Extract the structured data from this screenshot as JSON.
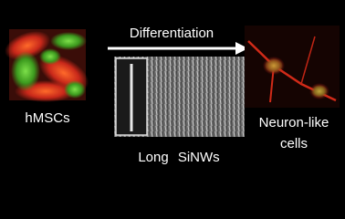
{
  "arrow_label": "Differentiation",
  "left_label": "hMSCs",
  "center_label": "Long SiNWs",
  "right_label": {
    "line1": "Neuron-like",
    "line2": "cells"
  }
}
